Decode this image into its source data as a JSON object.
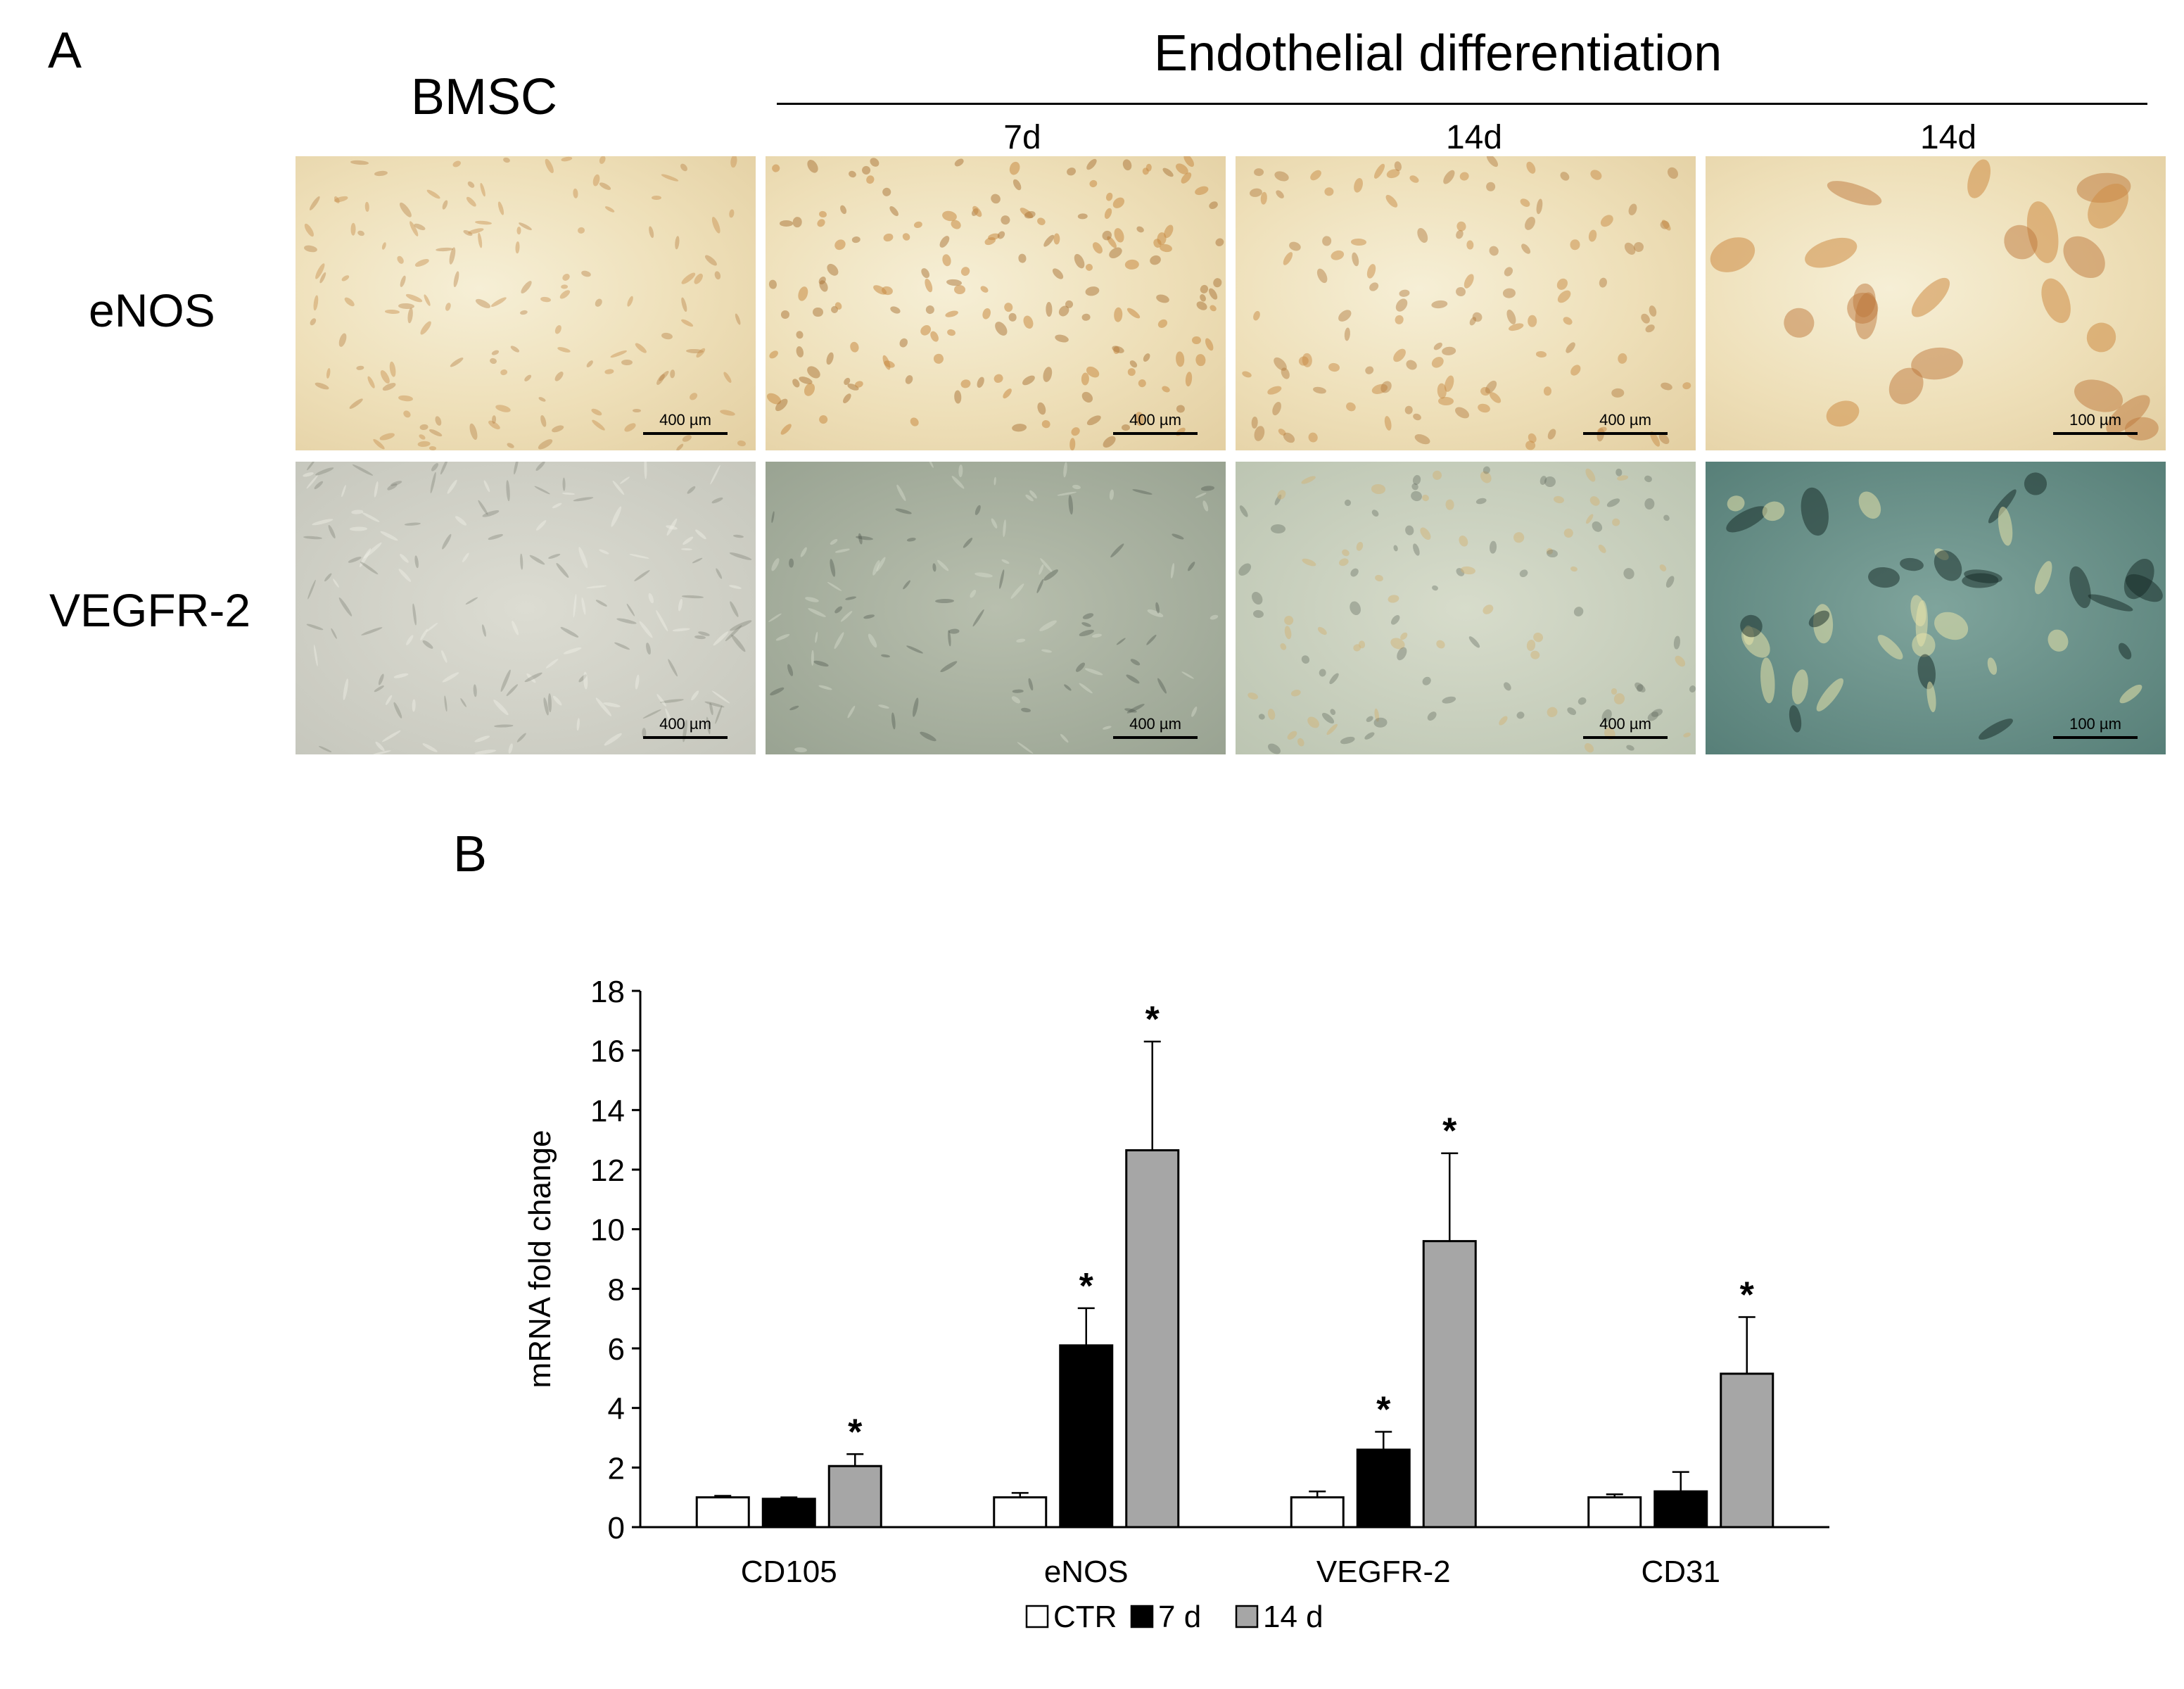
{
  "panel_a": {
    "letter": "A",
    "bmsc_header": "BMSC",
    "endo_header": "Endothelial differentiation",
    "timepoints": [
      "7d",
      "14d",
      "14d"
    ],
    "row_labels": [
      "eNOS",
      "VEGFR-2"
    ],
    "scale_bars": {
      "enos": [
        "400 µm",
        "400 µm",
        "400 µm",
        "100 µm"
      ],
      "vegfr2": [
        "400 µm",
        "400 µm",
        "400 µm",
        "100 µm"
      ]
    }
  },
  "panel_b": {
    "letter": "B"
  },
  "chart_data": {
    "type": "bar",
    "title": "",
    "xlabel": "",
    "ylabel": "mRNA fold change",
    "ylim": [
      0,
      18
    ],
    "yticks": [
      0,
      2,
      4,
      6,
      8,
      10,
      12,
      14,
      16,
      18
    ],
    "categories": [
      "CD105",
      "eNOS",
      "VEGFR-2",
      "CD31"
    ],
    "series": [
      {
        "name": "CTR",
        "color": "#ffffff",
        "values": [
          1.0,
          1.0,
          1.0,
          1.0
        ],
        "errors": [
          0.05,
          0.15,
          0.2,
          0.1
        ],
        "significant": [
          false,
          false,
          false,
          false
        ]
      },
      {
        "name": "7 d",
        "color": "#000000",
        "values": [
          0.95,
          6.1,
          2.6,
          1.2
        ],
        "errors": [
          0.05,
          1.25,
          0.6,
          0.65
        ],
        "significant": [
          false,
          true,
          true,
          false
        ]
      },
      {
        "name": "14 d",
        "color": "#a6a6a6",
        "values": [
          2.05,
          12.65,
          9.6,
          5.15
        ],
        "errors": [
          0.4,
          3.65,
          2.95,
          1.9
        ],
        "significant": [
          true,
          true,
          true,
          true
        ]
      }
    ],
    "significance_marker": "*",
    "legend_position": "bottom-center",
    "grid": false
  }
}
